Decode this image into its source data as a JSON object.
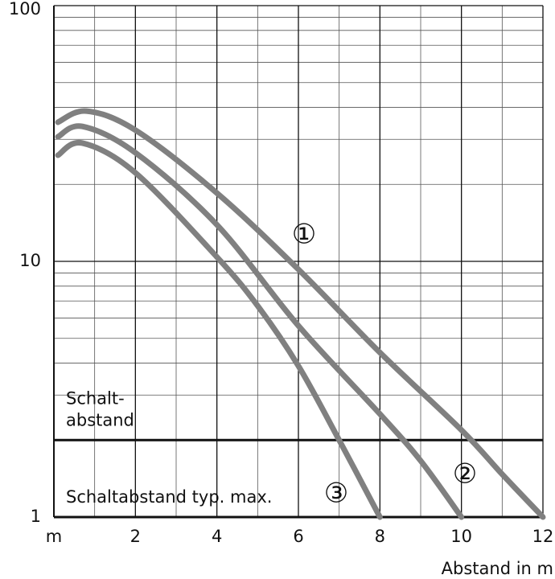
{
  "chart_data": {
    "type": "line",
    "x_label": "Abstand in m",
    "log_y": true,
    "grid": true,
    "xlim": [
      0,
      12
    ],
    "xticks": [
      {
        "value": 0,
        "label": "m"
      },
      2,
      4,
      6,
      8,
      10,
      12
    ],
    "minor_xticks": [
      1,
      3,
      5,
      7,
      9,
      11
    ],
    "ylim": [
      1,
      100
    ],
    "yticks": [
      1,
      10,
      100
    ],
    "minor_yticks": [
      2,
      3,
      4,
      5,
      6,
      7,
      8,
      9,
      20,
      30,
      40,
      50,
      60,
      70,
      80,
      90
    ],
    "hlines": [
      {
        "value": 2,
        "label_lines": [
          "Schalt-",
          "abstand"
        ]
      },
      {
        "value": 1,
        "label_lines": [
          "Schaltabstand typ. max."
        ]
      }
    ],
    "series": [
      {
        "name": "①",
        "color": "#808080",
        "x": [
          0.1,
          0.8,
          2,
          4,
          6,
          8,
          10,
          11,
          12
        ],
        "values": [
          35,
          38.7,
          32.6,
          18.5,
          9.3,
          4.4,
          2.19,
          1.47,
          1
        ]
      },
      {
        "name": "②",
        "color": "#808080",
        "x": [
          0.1,
          0.7,
          2,
          4,
          6,
          8,
          9,
          10
        ],
        "values": [
          30.7,
          33.7,
          26.6,
          13.9,
          5.6,
          2.53,
          1.66,
          1
        ]
      },
      {
        "name": "③",
        "color": "#808080",
        "x": [
          0.1,
          0.7,
          2,
          4,
          5,
          6,
          7,
          8
        ],
        "values": [
          26,
          29,
          22.2,
          10.4,
          6.7,
          3.9,
          2.0,
          1
        ]
      }
    ]
  }
}
